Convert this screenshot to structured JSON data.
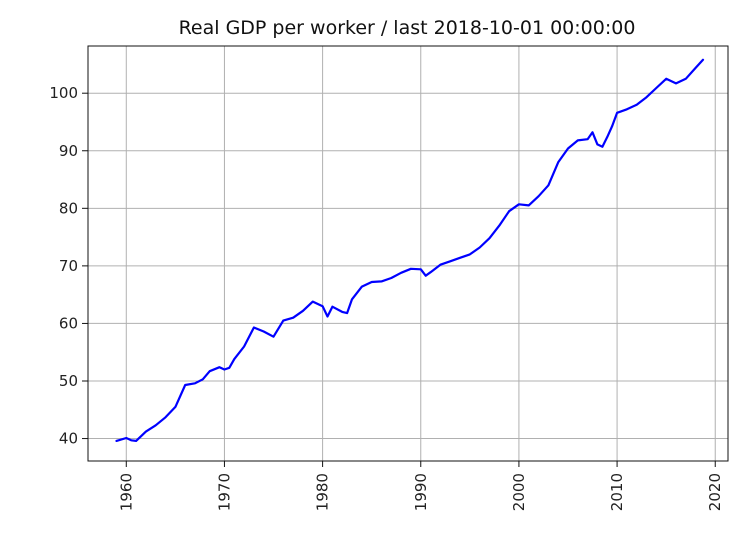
{
  "chart_data": {
    "type": "line",
    "title": "Real GDP per worker / last 2018-10-01 00:00:00",
    "xlabel": "",
    "ylabel": "",
    "xlim": [
      1956.1,
      2021.3
    ],
    "ylim": [
      36.1,
      108.2
    ],
    "xticks": [
      1960,
      1970,
      1980,
      1990,
      2000,
      2010,
      2020
    ],
    "xtick_labels": [
      "1960",
      "1970",
      "1980",
      "1990",
      "2000",
      "2010",
      "2020"
    ],
    "yticks": [
      40,
      50,
      60,
      70,
      80,
      90,
      100
    ],
    "ytick_labels": [
      "40",
      "50",
      "60",
      "70",
      "80",
      "90",
      "100"
    ],
    "grid": true,
    "line_color": "#0000ff",
    "series": [
      {
        "x": [
          1959.0,
          1960.0,
          1960.5,
          1961.0,
          1962.0,
          1963.0,
          1964.0,
          1965.0,
          1966.0,
          1967.0,
          1967.8,
          1968.5,
          1969.5,
          1970.0,
          1970.5,
          1971.0,
          1972.0,
          1973.0,
          1974.0,
          1975.0,
          1976.0,
          1977.0,
          1978.0,
          1979.0,
          1980.0,
          1980.5,
          1981.0,
          1982.0,
          1982.5,
          1983.0,
          1984.0,
          1985.0,
          1986.0,
          1987.0,
          1988.0,
          1989.0,
          1990.0,
          1990.5,
          1991.0,
          1992.0,
          1993.0,
          1994.0,
          1995.0,
          1996.0,
          1997.0,
          1998.0,
          1999.0,
          2000.0,
          2001.0,
          2002.0,
          2003.0,
          2004.0,
          2005.0,
          2006.0,
          2007.0,
          2007.5,
          2008.0,
          2008.5,
          2009.0,
          2009.5,
          2010.0,
          2011.0,
          2012.0,
          2013.0,
          2014.0,
          2015.0,
          2016.0,
          2017.0,
          2018.0,
          2018.75
        ],
        "y": [
          39.6,
          40.1,
          39.7,
          39.6,
          41.2,
          42.3,
          43.7,
          45.5,
          49.3,
          49.6,
          50.3,
          51.7,
          52.4,
          52.0,
          52.3,
          53.8,
          56.0,
          59.3,
          58.6,
          57.7,
          60.5,
          61.0,
          62.2,
          63.8,
          63.0,
          61.2,
          62.9,
          62.0,
          61.8,
          64.2,
          66.4,
          67.2,
          67.3,
          67.9,
          68.8,
          69.5,
          69.4,
          68.3,
          68.9,
          70.2,
          70.8,
          71.4,
          72.0,
          73.2,
          74.8,
          77.0,
          79.5,
          80.7,
          80.5,
          82.1,
          84.0,
          88.0,
          90.4,
          91.8,
          92.0,
          93.2,
          91.1,
          90.7,
          92.4,
          94.3,
          96.6,
          97.2,
          98.0,
          99.3,
          100.9,
          102.5,
          101.7,
          102.5,
          104.4,
          105.8
        ]
      }
    ]
  }
}
